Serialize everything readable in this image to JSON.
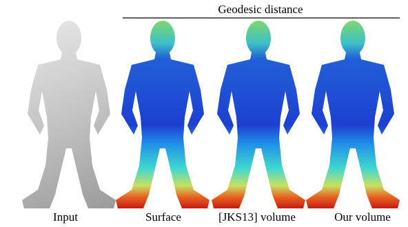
{
  "header": {
    "title": "Geodesic distance"
  },
  "panels": [
    {
      "label": "Input"
    },
    {
      "label": "Surface"
    },
    {
      "label": "[JKS13] volume"
    },
    {
      "label": "Our volume"
    }
  ]
}
